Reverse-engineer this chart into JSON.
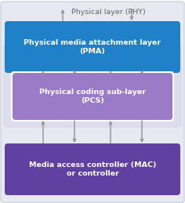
{
  "outer_box_color": "#e8e8f2",
  "outer_box_edge": "#d0d0e0",
  "pma_box_color": "#2080c8",
  "pma_text": "Physical media attachment layer\n(PMA)",
  "pma_text_color": "#ffffff",
  "pcs_box_color": "#9b7bc8",
  "pcs_box_color_inner": "#a882d0",
  "pcs_text": "Physical coding sub-layer\n(PCS)",
  "pcs_text_color": "#ffffff",
  "mac_box_color": "#6040a0",
  "mac_text": "Media access controller (MAC)\nor controller",
  "mac_text_color": "#ffffff",
  "phy_label": "Physical layer (PHY)",
  "phy_label_color": "#666666",
  "arrow_color": "#909090",
  "fig_bg": "#ffffff",
  "font_size_boxes": 6.8,
  "font_size_phy": 6.8
}
